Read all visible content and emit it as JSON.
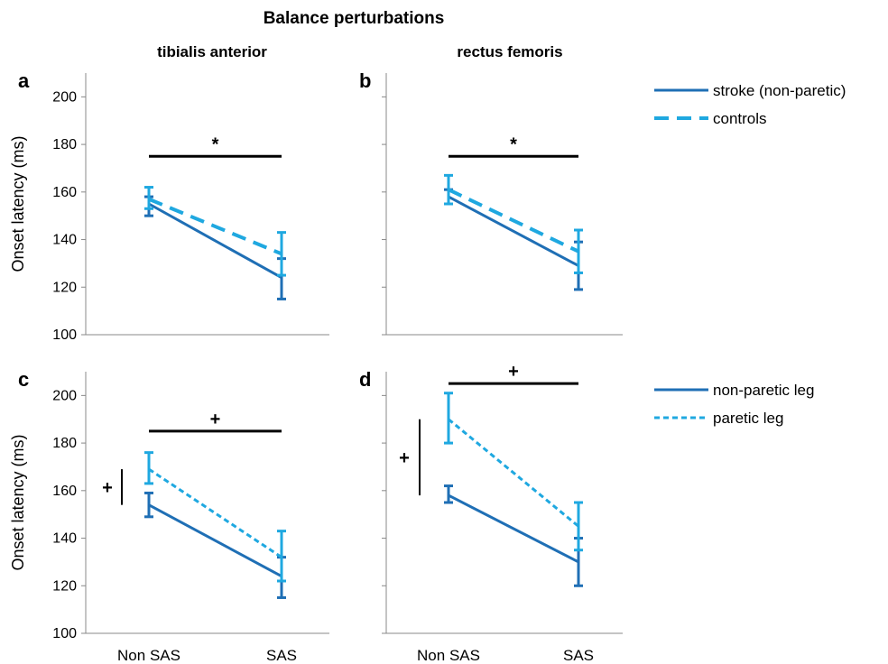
{
  "title": "Balance perturbations",
  "column_titles": [
    "tibialis anterior",
    "rectus femoris"
  ],
  "ylabel": "Onset latency (ms)",
  "x_categories": [
    "Non SAS",
    "SAS"
  ],
  "legends": [
    {
      "entries": [
        {
          "label": "stroke (non-paretic)",
          "color": "#1f6fb5",
          "style": "solid"
        },
        {
          "label": "controls",
          "color": "#1fa8e0",
          "style": "dashed"
        }
      ]
    },
    {
      "entries": [
        {
          "label": "non-paretic leg",
          "color": "#1f6fb5",
          "style": "solid"
        },
        {
          "label": "paretic leg",
          "color": "#1fa8e0",
          "style": "dotted"
        }
      ]
    }
  ],
  "chart_data": [
    {
      "panel": "a",
      "type": "line",
      "column": "tibialis anterior",
      "categories": [
        "Non SAS",
        "SAS"
      ],
      "ylabel": "Onset latency (ms)",
      "ylim": [
        100,
        210
      ],
      "yticks": [
        100,
        120,
        140,
        160,
        180,
        200
      ],
      "series": [
        {
          "name": "stroke (non-paretic)",
          "values": [
            155,
            124
          ],
          "err_low": [
            150,
            115
          ],
          "err_high": [
            158,
            132
          ],
          "color": "#1f6fb5",
          "style": "solid"
        },
        {
          "name": "controls",
          "values": [
            157,
            134
          ],
          "err_low": [
            153,
            125
          ],
          "err_high": [
            162,
            143
          ],
          "color": "#1fa8e0",
          "style": "dashed"
        }
      ],
      "sig_bar": {
        "symbol": "*",
        "orientation": "horizontal",
        "y": 175
      }
    },
    {
      "panel": "b",
      "type": "line",
      "column": "rectus femoris",
      "categories": [
        "Non SAS",
        "SAS"
      ],
      "ylim": [
        100,
        210
      ],
      "yticks": [
        100,
        120,
        140,
        160,
        180,
        200
      ],
      "series": [
        {
          "name": "stroke (non-paretic)",
          "values": [
            158,
            129
          ],
          "err_low": [
            155,
            119
          ],
          "err_high": [
            161,
            139
          ],
          "color": "#1f6fb5",
          "style": "solid"
        },
        {
          "name": "controls",
          "values": [
            161,
            135
          ],
          "err_low": [
            155,
            126
          ],
          "err_high": [
            167,
            144
          ],
          "color": "#1fa8e0",
          "style": "dashed"
        }
      ],
      "sig_bar": {
        "symbol": "*",
        "orientation": "horizontal",
        "y": 175
      }
    },
    {
      "panel": "c",
      "type": "line",
      "column": "tibialis anterior",
      "categories": [
        "Non SAS",
        "SAS"
      ],
      "ylabel": "Onset latency (ms)",
      "ylim": [
        100,
        210
      ],
      "yticks": [
        100,
        120,
        140,
        160,
        180,
        200
      ],
      "series": [
        {
          "name": "non-paretic leg",
          "values": [
            154,
            124
          ],
          "err_low": [
            149,
            115
          ],
          "err_high": [
            159,
            132
          ],
          "color": "#1f6fb5",
          "style": "solid"
        },
        {
          "name": "paretic leg",
          "values": [
            169,
            132
          ],
          "err_low": [
            163,
            122
          ],
          "err_high": [
            176,
            143
          ],
          "color": "#1fa8e0",
          "style": "dotted"
        }
      ],
      "sig_bar": {
        "symbol": "+",
        "orientation": "horizontal",
        "y": 185
      },
      "sig_bar_vertical": {
        "symbol": "+",
        "orientation": "vertical",
        "y_range": [
          154,
          169
        ]
      }
    },
    {
      "panel": "d",
      "type": "line",
      "column": "rectus femoris",
      "categories": [
        "Non SAS",
        "SAS"
      ],
      "ylim": [
        100,
        210
      ],
      "yticks": [
        100,
        120,
        140,
        160,
        180,
        200
      ],
      "series": [
        {
          "name": "non-paretic leg",
          "values": [
            158,
            130
          ],
          "err_low": [
            155,
            120
          ],
          "err_high": [
            162,
            140
          ],
          "color": "#1f6fb5",
          "style": "solid"
        },
        {
          "name": "paretic leg",
          "values": [
            190,
            145
          ],
          "err_low": [
            180,
            135
          ],
          "err_high": [
            201,
            155
          ],
          "color": "#1fa8e0",
          "style": "dotted"
        }
      ],
      "sig_bar": {
        "symbol": "+",
        "orientation": "horizontal",
        "y": 205
      },
      "sig_bar_vertical": {
        "symbol": "+",
        "orientation": "vertical",
        "y_range": [
          158,
          190
        ]
      }
    }
  ]
}
